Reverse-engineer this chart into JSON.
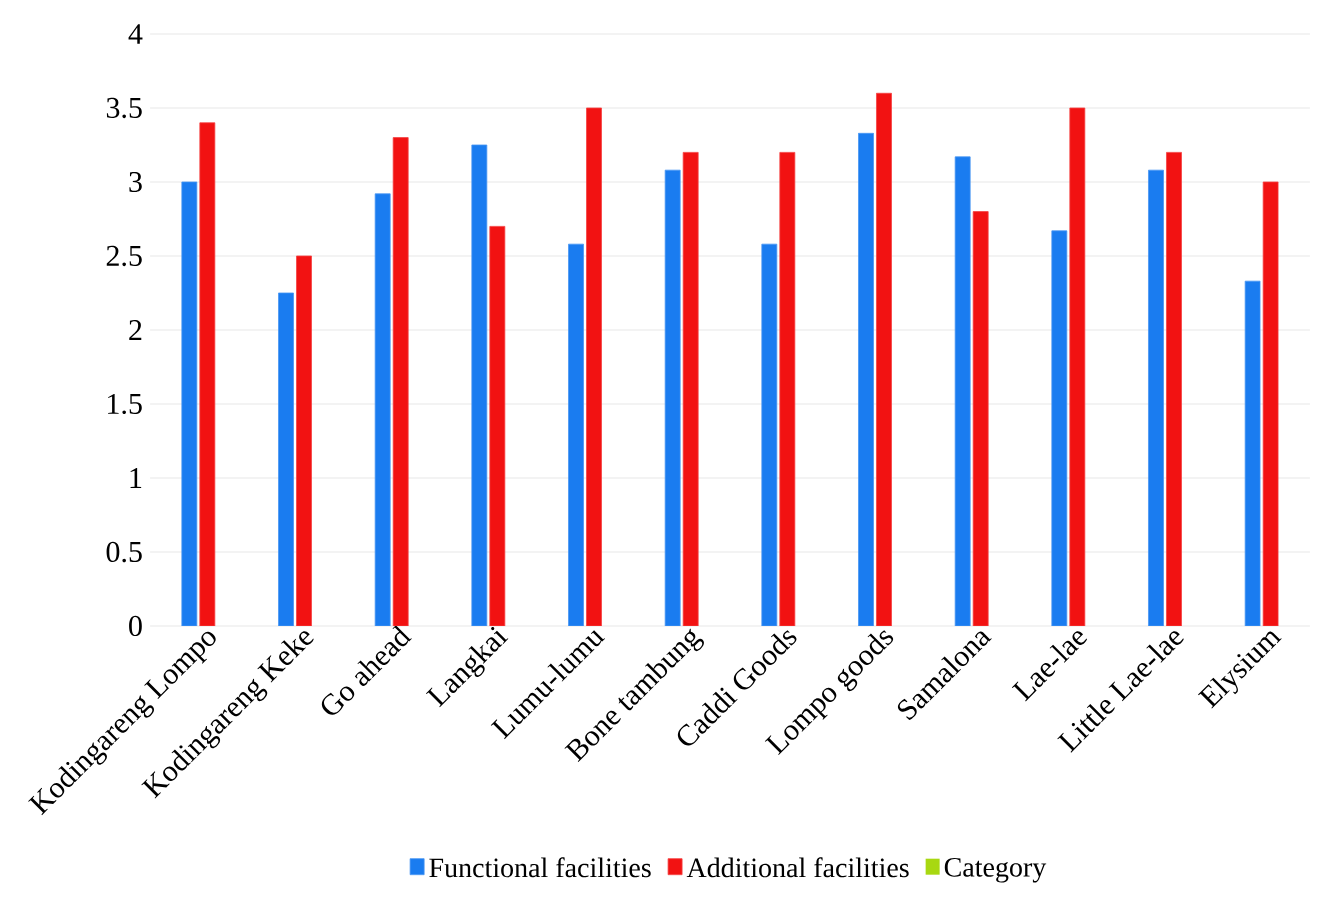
{
  "chart_data": {
    "type": "bar",
    "categories": [
      "Kodingareng Lompo",
      "Kodingareng Keke",
      "Go ahead",
      "Langkai",
      "Lumu-lumu",
      "Bone tambung",
      "Caddi Goods",
      "Lompo goods",
      "Samalona",
      "Lae-lae",
      "Little Lae-lae",
      "Elysium"
    ],
    "series": [
      {
        "name": "Functional facilities",
        "color": "#1a7cf0",
        "values": [
          3.0,
          2.25,
          2.92,
          3.25,
          2.58,
          3.08,
          2.58,
          3.33,
          3.17,
          2.67,
          3.08,
          2.33
        ]
      },
      {
        "name": "Additional facilities",
        "color": "#f21212",
        "values": [
          3.4,
          2.5,
          3.3,
          2.7,
          3.5,
          3.2,
          3.2,
          3.6,
          2.8,
          3.5,
          3.2,
          3.0
        ]
      },
      {
        "name": "Category",
        "color": "#a8d811",
        "values": [
          null,
          null,
          null,
          null,
          null,
          null,
          null,
          null,
          null,
          null,
          null,
          null
        ]
      }
    ],
    "ylim": [
      0,
      4
    ],
    "yticks": [
      0,
      0.5,
      1,
      1.5,
      2,
      2.5,
      3,
      3.5,
      4
    ],
    "grid": "y",
    "legend": "bottom"
  }
}
